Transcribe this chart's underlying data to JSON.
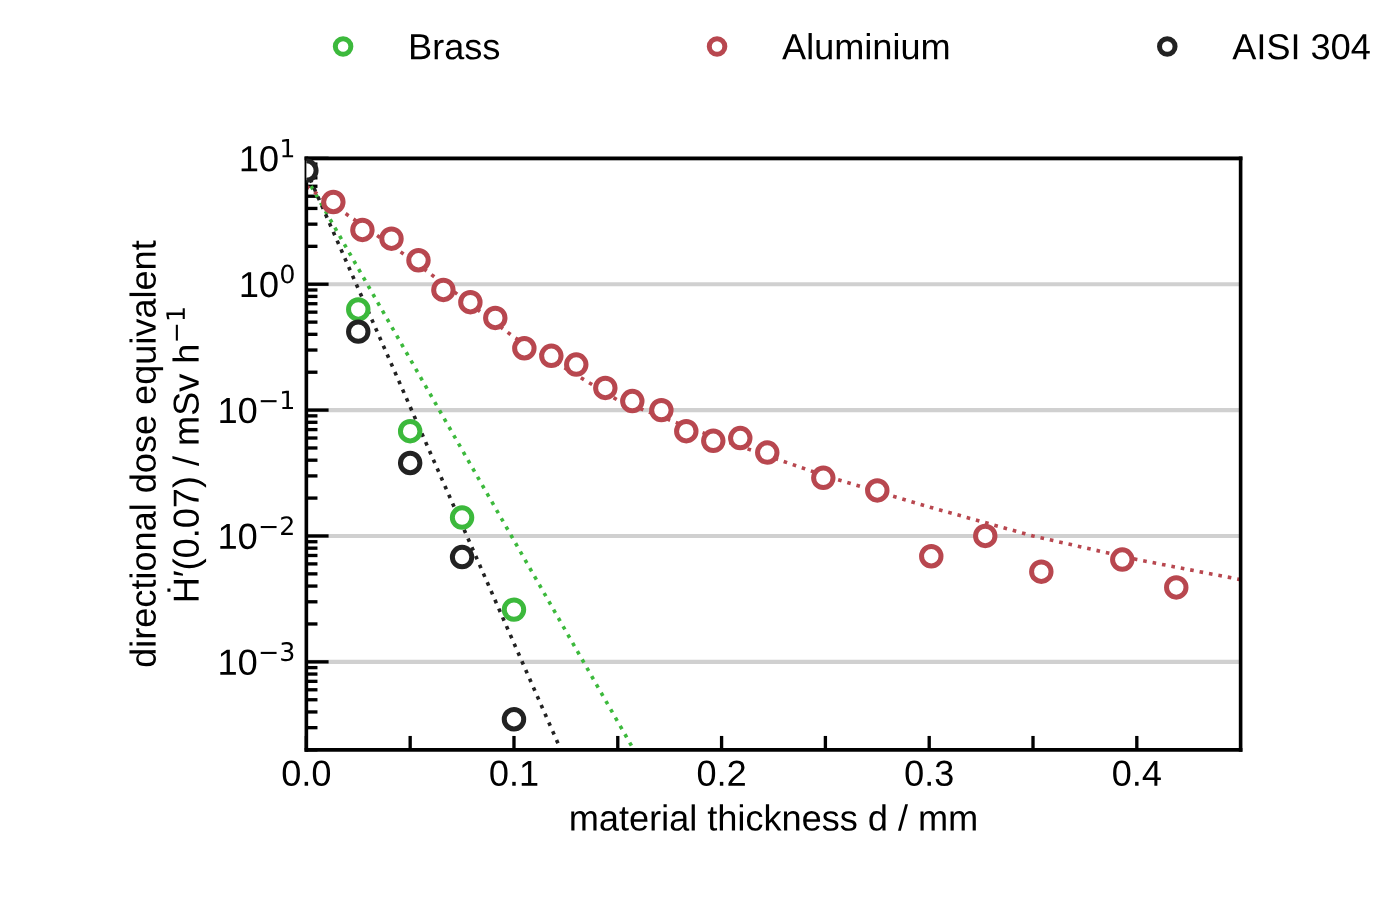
{
  "chart_data": {
    "type": "scatter",
    "xlabel": "material thickness d / mm",
    "ylabel": "directional dose equivalent\nḢ′(0.07) / mSv h$^{−1}$",
    "log": "y",
    "grid": "y",
    "legend": "top",
    "marker": "circle",
    "xlim": [
      0,
      0.45
    ],
    "ylim": [
      0.0002,
      10
    ],
    "xticks": [
      {
        "value": 0,
        "label": "0.0"
      },
      {
        "value": 0.05,
        "label": null
      },
      0.1,
      {
        "value": 0.15,
        "label": null
      },
      0.2,
      {
        "value": 0.25,
        "label": null
      },
      0.3,
      {
        "value": 0.35,
        "label": null
      },
      0.4
    ],
    "yticks": [
      {
        "value": 0.001,
        "label": "10$^{−3}$"
      },
      {
        "value": 0.01,
        "label": "10$^{−2}$"
      },
      {
        "value": 0.1,
        "label": "10$^{−1}$"
      },
      {
        "value": 1,
        "label": "10$^{0}$"
      },
      {
        "value": 10,
        "label": "10$^{1}$"
      }
    ],
    "series": [
      {
        "name": "Brass",
        "color": "#3cb93c",
        "x": [
          0.025,
          0.05,
          0.075,
          0.1
        ],
        "values": [
          0.63,
          0.068,
          0.014,
          0.0026
        ]
      },
      {
        "name": "Aluminium",
        "color": "#b8474f",
        "x": [
          0.013,
          0.027,
          0.041,
          0.054,
          0.066,
          0.079,
          0.091,
          0.105,
          0.118,
          0.13,
          0.144,
          0.157,
          0.171,
          0.183,
          0.196,
          0.209,
          0.222,
          0.249,
          0.275,
          0.301,
          0.327,
          0.354,
          0.393,
          0.419
        ],
        "values": [
          4.5,
          2.7,
          2.3,
          1.55,
          0.9,
          0.72,
          0.54,
          0.31,
          0.27,
          0.23,
          0.15,
          0.118,
          0.1,
          0.068,
          0.057,
          0.06,
          0.046,
          0.029,
          0.023,
          0.0069,
          0.01,
          0.0052,
          0.0065,
          0.0039
        ]
      },
      {
        "name": "AISI 304",
        "color": "#222222",
        "x": [
          0,
          0.025,
          0.05,
          0.075,
          0.1
        ],
        "values": [
          8,
          0.42,
          0.038,
          0.0068,
          0.00035
        ]
      },
      {
        "type": "line",
        "line_style": "dotted",
        "marker": "none",
        "color": "#3cb93c",
        "x": [
          0,
          0.157
        ],
        "values": [
          7,
          0.00021
        ]
      },
      {
        "type": "line",
        "line_style": "dotted",
        "marker": "none",
        "color": "#b8474f",
        "x": [
          0,
          0.05,
          0.1,
          0.15,
          0.2,
          0.25,
          0.3,
          0.35,
          0.4,
          0.45
        ],
        "values": [
          6,
          1.6,
          0.38,
          0.12,
          0.058,
          0.03,
          0.017,
          0.01,
          0.0065,
          0.0045
        ]
      },
      {
        "type": "line",
        "line_style": "dotted",
        "marker": "none",
        "color": "#222222",
        "x": [
          0,
          0.122
        ],
        "values": [
          8,
          0.00021
        ]
      }
    ]
  }
}
